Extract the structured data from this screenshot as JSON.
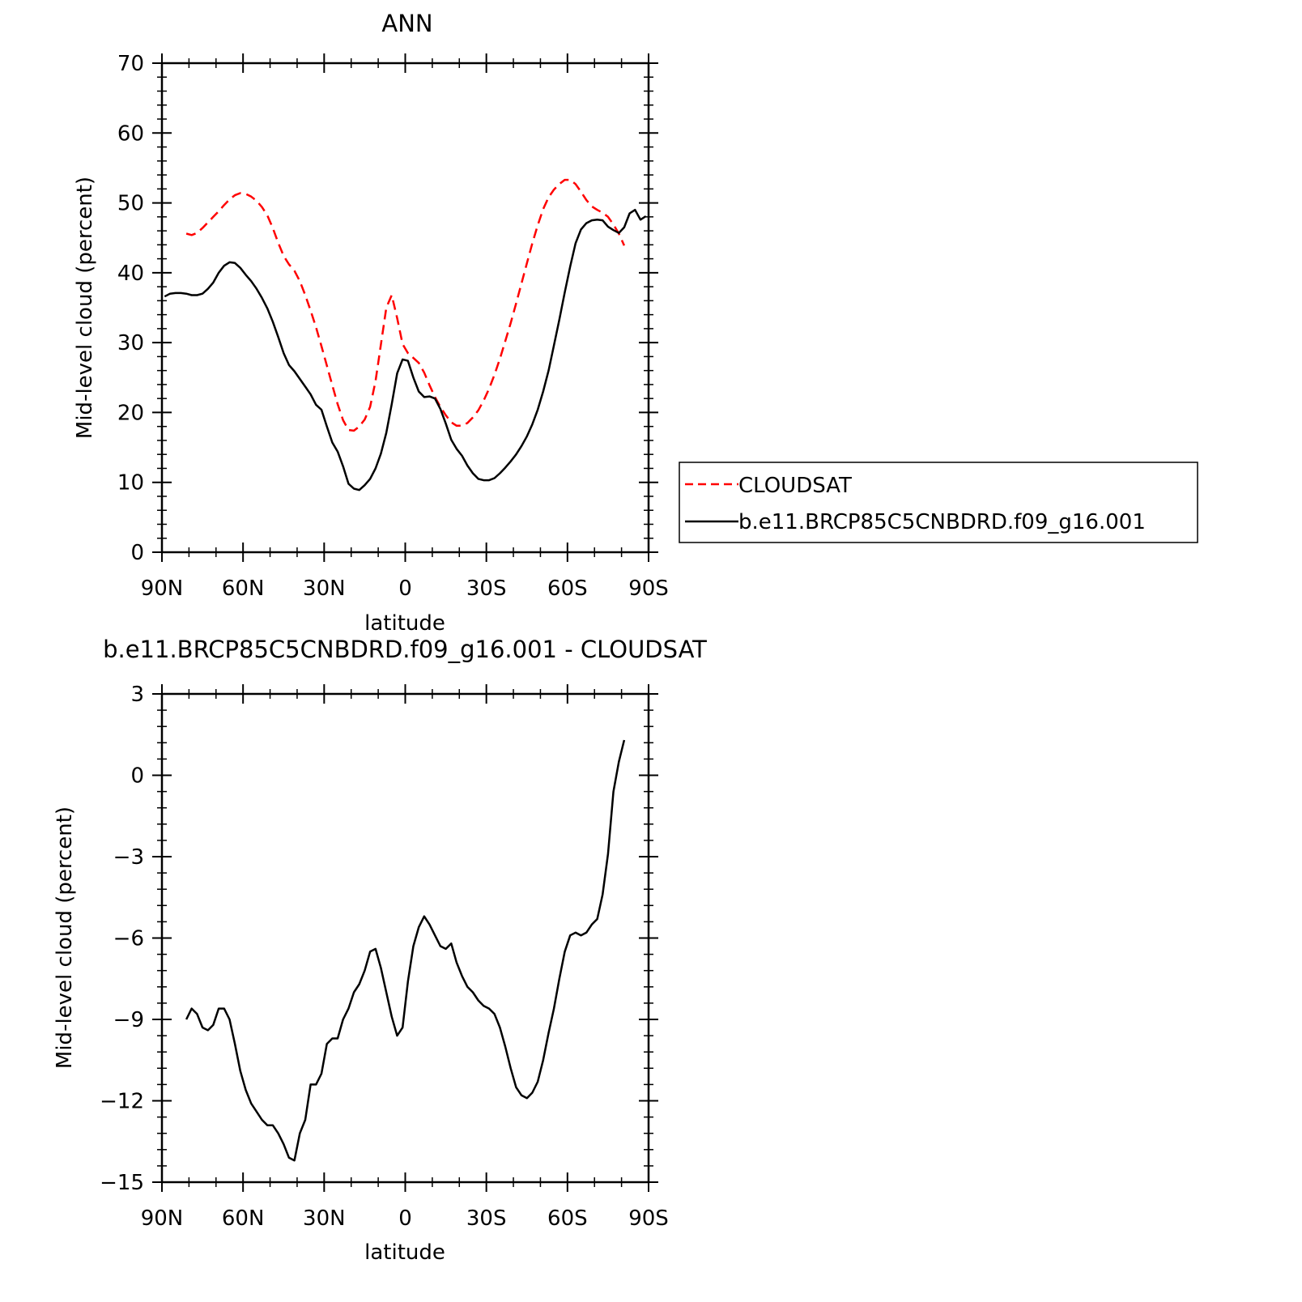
{
  "chart_data": [
    {
      "type": "line",
      "title": "ANN",
      "xlabel": "latitude",
      "ylabel": "Mid-level cloud (percent)",
      "xlim": [
        90,
        -90
      ],
      "ylim": [
        0,
        70
      ],
      "x_ticks": [
        90,
        60,
        30,
        0,
        -30,
        -60,
        -90
      ],
      "x_tick_labels": [
        "90N",
        "60N",
        "30N",
        "0",
        "30S",
        "60S",
        "90S"
      ],
      "y_ticks": [
        0,
        10,
        20,
        30,
        40,
        50,
        60,
        70
      ],
      "y_tick_labels": [
        "0",
        "10",
        "20",
        "30",
        "40",
        "50",
        "60",
        "70"
      ],
      "grid": false,
      "legend_position": "right",
      "series": [
        {
          "name": "CLOUDSAT",
          "color": "#ff0000",
          "dash": "dashed",
          "x": [
            81,
            79,
            77,
            75,
            73,
            71,
            69,
            67,
            65,
            63,
            61,
            59,
            57,
            55,
            53,
            51,
            49,
            47,
            45,
            43,
            41,
            39,
            37,
            35,
            33,
            31,
            29,
            27,
            25,
            23,
            21,
            19,
            17,
            15,
            13,
            11,
            9,
            7,
            5,
            3,
            1,
            -1,
            -3,
            -5,
            -7,
            -9,
            -11,
            -13,
            -15,
            -17,
            -19,
            -21,
            -23,
            -25,
            -27,
            -29,
            -31,
            -33,
            -35,
            -37,
            -39,
            -41,
            -43,
            -45,
            -47,
            -49,
            -51,
            -53,
            -55,
            -57,
            -59,
            -61,
            -63,
            -65,
            -67,
            -69,
            -71,
            -73,
            -75,
            -77,
            -79,
            -81
          ],
          "y": [
            45.6,
            45.4,
            45.7,
            46.4,
            47.2,
            48.0,
            48.8,
            49.7,
            50.5,
            51.1,
            51.4,
            51.3,
            50.9,
            50.3,
            49.4,
            48.2,
            46.4,
            44.3,
            42.4,
            41.2,
            40.3,
            38.8,
            36.8,
            34.6,
            32.2,
            29.5,
            26.7,
            23.9,
            21.2,
            18.9,
            17.5,
            17.4,
            18.0,
            19.0,
            20.8,
            24.5,
            29.7,
            35.0,
            36.8,
            33.5,
            29.8,
            28.5,
            27.8,
            27.1,
            25.7,
            23.9,
            22.2,
            20.8,
            19.6,
            18.6,
            18.1,
            18.1,
            18.5,
            19.3,
            20.3,
            21.7,
            23.4,
            25.4,
            27.7,
            30.2,
            32.8,
            35.6,
            38.5,
            41.4,
            44.2,
            46.8,
            49.1,
            50.8,
            51.9,
            52.7,
            53.3,
            53.3,
            52.7,
            51.6,
            50.4,
            49.5,
            49.0,
            48.6,
            48.0,
            46.9,
            45.6,
            43.9
          ]
        },
        {
          "name": "b.e11.BRCP85C5CNBDRD.f09_g16.001",
          "color": "#000000",
          "dash": "solid",
          "x": [
            89,
            87,
            85,
            83,
            81,
            79,
            77,
            75,
            73,
            71,
            69,
            67,
            65,
            63,
            61,
            59,
            57,
            55,
            53,
            51,
            49,
            47,
            45,
            43,
            41,
            39,
            37,
            35,
            33,
            31,
            29,
            27,
            25,
            23,
            21,
            19,
            17,
            15,
            13,
            11,
            9,
            7,
            5,
            3,
            1,
            -1,
            -3,
            -5,
            -7,
            -9,
            -11,
            -13,
            -15,
            -17,
            -19,
            -21,
            -23,
            -25,
            -27,
            -29,
            -31,
            -33,
            -35,
            -37,
            -39,
            -41,
            -43,
            -45,
            -47,
            -49,
            -51,
            -53,
            -55,
            -57,
            -59,
            -61,
            -63,
            -65,
            -67,
            -69,
            -71,
            -73,
            -75,
            -77,
            -79,
            -81,
            -83,
            -85,
            -87,
            -89
          ],
          "y": [
            36.6,
            37.0,
            37.1,
            37.1,
            37.0,
            36.8,
            36.8,
            37.0,
            37.7,
            38.6,
            40.0,
            41.0,
            41.5,
            41.4,
            40.7,
            39.7,
            38.8,
            37.7,
            36.4,
            34.9,
            33.0,
            30.8,
            28.5,
            26.8,
            25.9,
            24.8,
            23.7,
            22.6,
            21.1,
            20.4,
            18.0,
            15.7,
            14.4,
            12.3,
            9.8,
            9.1,
            8.9,
            9.6,
            10.5,
            12.0,
            14.1,
            17.1,
            21.2,
            25.6,
            27.6,
            27.4,
            25.0,
            23.0,
            22.2,
            22.3,
            22.0,
            20.5,
            18.4,
            16.1,
            14.8,
            13.8,
            12.4,
            11.3,
            10.5,
            10.3,
            10.3,
            10.6,
            11.3,
            12.1,
            13.0,
            14.0,
            15.2,
            16.6,
            18.3,
            20.4,
            23.0,
            26.0,
            29.6,
            33.3,
            37.2,
            40.9,
            44.2,
            46.2,
            47.1,
            47.5,
            47.6,
            47.5,
            46.6,
            46.1,
            45.7,
            46.5,
            48.5,
            49.0,
            47.6,
            48.1
          ]
        }
      ]
    },
    {
      "type": "line",
      "title": "b.e11.BRCP85C5CNBDRD.f09_g16.001 - CLOUDSAT",
      "xlabel": "latitude",
      "ylabel": "Mid-level cloud (percent)",
      "xlim": [
        90,
        -90
      ],
      "ylim": [
        -15,
        3
      ],
      "x_ticks": [
        90,
        60,
        30,
        0,
        -30,
        -60,
        -90
      ],
      "x_tick_labels": [
        "90N",
        "60N",
        "30N",
        "0",
        "30S",
        "60S",
        "90S"
      ],
      "y_ticks": [
        -15,
        -12,
        -9,
        -6,
        -3,
        0,
        3
      ],
      "y_tick_labels": [
        "−15",
        "−12",
        "−9",
        "−6",
        "−3",
        "0",
        "3"
      ],
      "grid": false,
      "series": [
        {
          "color": "#000000",
          "dash": "solid",
          "x": [
            81,
            79,
            77,
            75,
            73,
            71,
            69,
            67,
            65,
            63,
            61,
            59,
            57,
            55,
            53,
            51,
            49,
            47,
            45,
            43,
            41,
            39,
            37,
            35,
            33,
            31,
            29,
            27,
            25,
            23,
            21,
            19,
            17,
            15,
            13,
            11,
            9,
            7,
            5,
            3,
            1,
            -1,
            -3,
            -5,
            -7,
            -9,
            -11,
            -13,
            -15,
            -17,
            -19,
            -21,
            -23,
            -25,
            -27,
            -29,
            -31,
            -33,
            -35,
            -37,
            -39,
            -41,
            -43,
            -45,
            -47,
            -49,
            -51,
            -53,
            -55,
            -57,
            -59,
            -61,
            -63,
            -65,
            -67,
            -69,
            -71,
            -73,
            -75,
            -77,
            -79,
            -81
          ],
          "y": [
            -9.0,
            -8.6,
            -8.8,
            -9.3,
            -9.4,
            -9.2,
            -8.6,
            -8.6,
            -9.0,
            -9.9,
            -10.9,
            -11.6,
            -12.1,
            -12.4,
            -12.7,
            -12.9,
            -12.9,
            -13.2,
            -13.6,
            -14.1,
            -14.2,
            -13.2,
            -12.7,
            -11.4,
            -11.4,
            -11.0,
            -9.9,
            -9.7,
            -9.7,
            -9.0,
            -8.6,
            -8.0,
            -7.7,
            -7.2,
            -6.5,
            -6.4,
            -7.1,
            -8.0,
            -8.9,
            -9.6,
            -9.3,
            -7.6,
            -6.3,
            -5.6,
            -5.2,
            -5.5,
            -5.9,
            -6.3,
            -6.4,
            -6.2,
            -6.9,
            -7.4,
            -7.8,
            -8.0,
            -8.3,
            -8.5,
            -8.6,
            -8.8,
            -9.3,
            -10.0,
            -10.8,
            -11.5,
            -11.8,
            -11.9,
            -11.7,
            -11.3,
            -10.5,
            -9.5,
            -8.6,
            -7.5,
            -6.5,
            -5.9,
            -5.8,
            -5.9,
            -5.8,
            -5.5,
            -5.3,
            -4.4,
            -2.9,
            -0.6,
            0.5,
            1.3
          ]
        }
      ]
    }
  ],
  "legend": {
    "entries": [
      "CLOUDSAT",
      "b.e11.BRCP85C5CNBDRD.f09_g16.001"
    ]
  }
}
